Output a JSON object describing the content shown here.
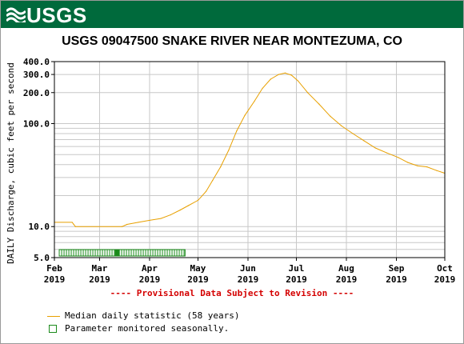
{
  "banner": {
    "logo_text": "USGS",
    "logo_icon": "usgs-wave-icon",
    "color": "#006a3c"
  },
  "chart_data": {
    "type": "line",
    "title": "USGS 09047500 SNAKE RIVER NEAR MONTEZUMA, CO",
    "ylabel": "DAILY Discharge, cubic feet per second",
    "yscale": "log",
    "ylim": [
      5,
      400
    ],
    "y_ticks": [
      {
        "value": 5,
        "label": "5.0"
      },
      {
        "value": 10,
        "label": "10.0"
      },
      {
        "value": 100,
        "label": "100.0"
      },
      {
        "value": 200,
        "label": "200.0"
      },
      {
        "value": 300,
        "label": "300.0"
      },
      {
        "value": 400,
        "label": "400.0"
      }
    ],
    "xlim": [
      "2019-02-01",
      "2019-10-01"
    ],
    "x_ticks": [
      {
        "date": "2019-02-01",
        "month": "Feb",
        "year": "2019"
      },
      {
        "date": "2019-03-01",
        "month": "Mar",
        "year": "2019"
      },
      {
        "date": "2019-04-01",
        "month": "Apr",
        "year": "2019"
      },
      {
        "date": "2019-05-01",
        "month": "May",
        "year": "2019"
      },
      {
        "date": "2019-06-01",
        "month": "Jun",
        "year": "2019"
      },
      {
        "date": "2019-07-01",
        "month": "Jul",
        "year": "2019"
      },
      {
        "date": "2019-08-01",
        "month": "Aug",
        "year": "2019"
      },
      {
        "date": "2019-09-01",
        "month": "Sep",
        "year": "2019"
      },
      {
        "date": "2019-10-01",
        "month": "Oct",
        "year": "2019"
      }
    ],
    "grid": true,
    "legend_position": "bottom",
    "series": [
      {
        "name": "Median daily statistic (58 years)",
        "color": "#e8a000",
        "points": [
          [
            "2019-02-01",
            11.0
          ],
          [
            "2019-02-12",
            11.0
          ],
          [
            "2019-02-13",
            10.5
          ],
          [
            "2019-02-14",
            10.0
          ],
          [
            "2019-03-15",
            10.0
          ],
          [
            "2019-03-18",
            10.5
          ],
          [
            "2019-03-25",
            11.0
          ],
          [
            "2019-04-01",
            11.5
          ],
          [
            "2019-04-08",
            12.0
          ],
          [
            "2019-04-14",
            13.0
          ],
          [
            "2019-04-20",
            14.5
          ],
          [
            "2019-04-25",
            16.0
          ],
          [
            "2019-05-01",
            18.0
          ],
          [
            "2019-05-06",
            22.0
          ],
          [
            "2019-05-10",
            28.0
          ],
          [
            "2019-05-15",
            38.0
          ],
          [
            "2019-05-20",
            55.0
          ],
          [
            "2019-05-25",
            85.0
          ],
          [
            "2019-05-30",
            120.0
          ],
          [
            "2019-06-05",
            165.0
          ],
          [
            "2019-06-10",
            220.0
          ],
          [
            "2019-06-15",
            270.0
          ],
          [
            "2019-06-20",
            300.0
          ],
          [
            "2019-06-24",
            310.0
          ],
          [
            "2019-06-28",
            295.0
          ],
          [
            "2019-07-02",
            260.0
          ],
          [
            "2019-07-08",
            200.0
          ],
          [
            "2019-07-15",
            155.0
          ],
          [
            "2019-07-22",
            118.0
          ],
          [
            "2019-07-29",
            95.0
          ],
          [
            "2019-08-05",
            80.0
          ],
          [
            "2019-08-12",
            68.0
          ],
          [
            "2019-08-19",
            58.0
          ],
          [
            "2019-08-26",
            52.0
          ],
          [
            "2019-09-02",
            47.0
          ],
          [
            "2019-09-08",
            42.0
          ],
          [
            "2019-09-14",
            39.0
          ],
          [
            "2019-09-20",
            38.0
          ],
          [
            "2019-09-26",
            35.0
          ],
          [
            "2019-10-01",
            33.0
          ]
        ]
      }
    ],
    "seasonal_band": {
      "name": "Parameter monitored seasonally.",
      "color": "#1a8a1a",
      "start": "2019-02-04",
      "end": "2019-04-23",
      "marker_date": "2019-03-12"
    },
    "annotation": "---- Provisional Data Subject to Revision ----"
  }
}
